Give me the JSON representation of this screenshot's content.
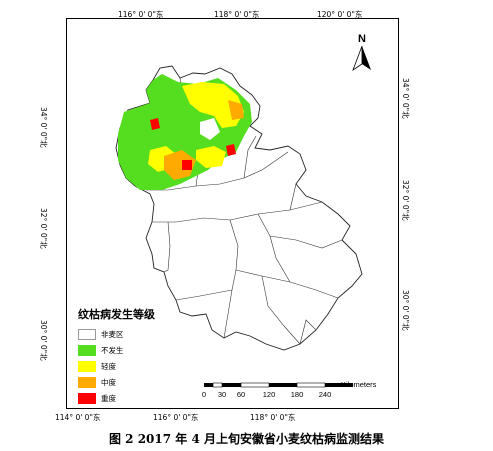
{
  "ticks": {
    "top": [
      "116° 0' 0\"东",
      "118° 0' 0\"东",
      "120° 0' 0\"东"
    ],
    "bottom": [
      "114° 0' 0\"东",
      "116° 0' 0\"东",
      "118° 0' 0\"东"
    ],
    "left": [
      "34° 0' 0\"北",
      "32° 0' 0\"北",
      "30° 0' 0\"北"
    ],
    "right": [
      "34° 0' 0\"北",
      "32° 0' 0\"北",
      "30° 0' 0\"北"
    ]
  },
  "north_label": "N",
  "legend": {
    "title": "纹枯病发生等级",
    "items": [
      {
        "label": "非麦区",
        "color": "#ffffff"
      },
      {
        "label": "不发生",
        "color": "#55dd1f"
      },
      {
        "label": "轻度",
        "color": "#ffff00"
      },
      {
        "label": "中度",
        "color": "#ffaa00"
      },
      {
        "label": "重度",
        "color": "#ff0000"
      }
    ]
  },
  "scalebar": {
    "unit": "Kilometers",
    "labels": [
      "0",
      "30",
      "60",
      "120",
      "180",
      "240"
    ]
  },
  "caption": "图 2 2017 年 4 月上旬安徽省小麦纹枯病监测结果"
}
